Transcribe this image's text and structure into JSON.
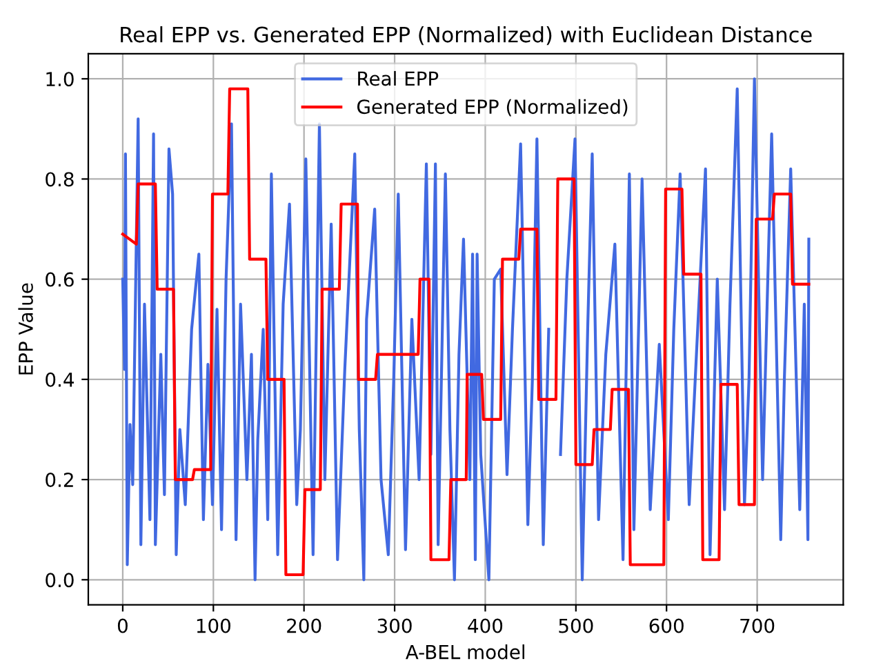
{
  "chart_data": {
    "type": "line",
    "title": "Real EPP vs. Generated EPP (Normalized) with Euclidean Distance",
    "xlabel": "A-BEL model",
    "ylabel": "EPP Value",
    "xlim": [
      -38,
      795
    ],
    "ylim": [
      -0.05,
      1.05
    ],
    "xticks": [
      0,
      100,
      200,
      300,
      400,
      500,
      600,
      700
    ],
    "yticks": [
      {
        "value": 0,
        "label": "0.0"
      },
      {
        "value": 0.2,
        "label": "0.2"
      },
      {
        "value": 0.4,
        "label": "0.4"
      },
      {
        "value": 0.6,
        "label": "0.6"
      },
      {
        "value": 0.8,
        "label": "0.8"
      },
      {
        "value": 1,
        "label": "1.0"
      }
    ],
    "grid": true,
    "legend": "top",
    "marker": "none",
    "line_style": "solid",
    "series": [
      {
        "name": "Real EPP",
        "color": "#4169e1",
        "x": [
          0,
          2,
          3,
          5,
          8,
          11,
          17,
          20,
          24,
          30,
          34,
          36,
          42,
          46,
          51,
          55,
          59,
          63,
          69,
          76,
          84,
          89,
          94,
          99,
          104,
          109,
          114,
          120,
          125,
          130,
          137,
          142,
          146,
          149,
          155,
          160,
          164,
          171,
          177,
          184,
          192,
          196,
          202,
          210,
          217,
          223,
          230,
          237,
          245,
          256,
          261,
          266,
          269,
          278,
          285,
          293,
          299,
          304,
          312,
          319,
          327,
          335,
          340,
          345,
          348,
          356,
          361,
          366,
          371,
          376,
          383,
          386,
          389,
          391,
          395,
          404,
          410,
          417,
          424,
          430,
          439,
          447,
          452,
          457,
          464,
          470,
          478,
          483,
          490,
          499,
          507,
          513,
          518,
          525,
          533,
          543,
          552,
          559,
          564,
          573,
          582,
          592,
          602,
          608,
          615,
          625,
          633,
          643,
          648,
          656,
          664,
          670,
          678,
          686,
          691,
          697,
          706,
          711,
          716,
          726,
          730,
          737,
          747,
          752,
          756,
          757
        ],
        "values": [
          0.6,
          0.42,
          0.85,
          0.03,
          0.31,
          0.19,
          0.92,
          0.07,
          0.55,
          0.12,
          0.89,
          0.07,
          0.45,
          0.17,
          0.86,
          0.77,
          0.05,
          0.3,
          0.15,
          0.5,
          0.65,
          0.12,
          0.43,
          0.15,
          0.54,
          0.1,
          0.6,
          0.91,
          0.08,
          0.55,
          0.2,
          0.45,
          0.0,
          0.28,
          0.5,
          0.12,
          0.81,
          0.05,
          0.55,
          0.75,
          0.15,
          0.3,
          0.84,
          0.05,
          0.91,
          0.2,
          0.71,
          0.04,
          0.42,
          0.85,
          0.3,
          0.0,
          0.52,
          0.74,
          0.2,
          0.05,
          0.4,
          0.77,
          0.06,
          0.52,
          0.2,
          0.83,
          0.25,
          0.83,
          0.07,
          0.81,
          0.3,
          0.0,
          0.45,
          0.68,
          0.2,
          0.65,
          0.04,
          0.65,
          0.25,
          0.0,
          0.6,
          0.62,
          0.21,
          0.5,
          0.87,
          0.11,
          0.4,
          0.88,
          0.07,
          0.5,
          null,
          0.25,
          0.6,
          0.88,
          0.0,
          0.5,
          0.85,
          0.12,
          0.45,
          0.67,
          0.04,
          0.81,
          0.1,
          0.8,
          0.14,
          0.47,
          0.12,
          0.5,
          0.81,
          0.15,
          0.45,
          0.82,
          0.05,
          0.6,
          0.14,
          0.55,
          0.98,
          0.15,
          0.4,
          1.0,
          0.2,
          0.55,
          0.89,
          0.08,
          0.4,
          0.82,
          0.14,
          0.55,
          0.08,
          0.68
        ]
      },
      {
        "name": "Generated EPP (Normalized)",
        "color": "#ff0000",
        "x": [
          0,
          15,
          17,
          36,
          38,
          56,
          58,
          77,
          79,
          97,
          99,
          116,
          118,
          138,
          140,
          158,
          160,
          178,
          180,
          199,
          201,
          218,
          220,
          239,
          241,
          259,
          260,
          279,
          281,
          326,
          328,
          338,
          340,
          360,
          362,
          379,
          380,
          396,
          398,
          417,
          419,
          437,
          439,
          457,
          459,
          478,
          480,
          498,
          500,
          518,
          520,
          538,
          540,
          558,
          560,
          597,
          599,
          617,
          619,
          638,
          640,
          658,
          660,
          678,
          680,
          697,
          699,
          717,
          719,
          737,
          739,
          757
        ],
        "values": [
          0.69,
          0.67,
          0.79,
          0.79,
          0.58,
          0.58,
          0.2,
          0.2,
          0.22,
          0.22,
          0.77,
          0.77,
          0.98,
          0.98,
          0.64,
          0.64,
          0.4,
          0.4,
          0.01,
          0.01,
          0.18,
          0.18,
          0.58,
          0.58,
          0.75,
          0.75,
          0.4,
          0.4,
          0.45,
          0.45,
          0.6,
          0.6,
          0.04,
          0.04,
          0.2,
          0.2,
          0.41,
          0.41,
          0.32,
          0.32,
          0.64,
          0.64,
          0.7,
          0.7,
          0.36,
          0.36,
          0.8,
          0.8,
          0.23,
          0.23,
          0.3,
          0.3,
          0.38,
          0.38,
          0.03,
          0.03,
          0.78,
          0.78,
          0.61,
          0.61,
          0.04,
          0.04,
          0.39,
          0.39,
          0.15,
          0.15,
          0.72,
          0.72,
          0.77,
          0.77,
          0.59,
          0.59
        ]
      }
    ]
  }
}
